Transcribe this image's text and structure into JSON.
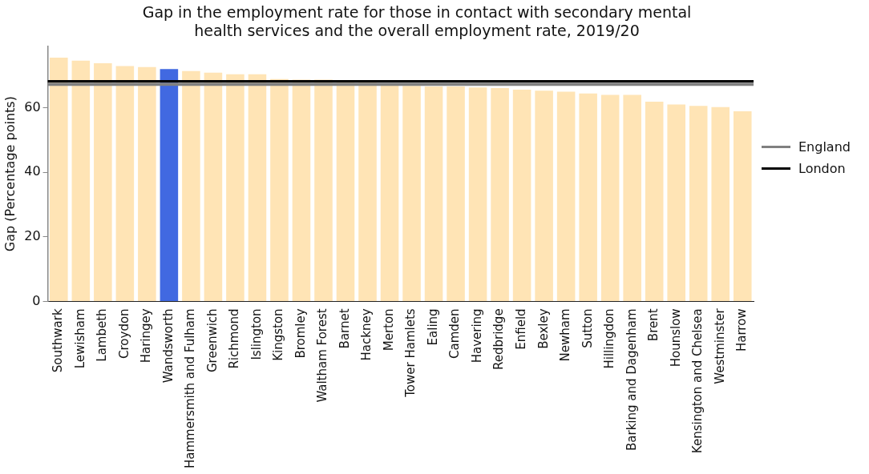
{
  "chart_data": {
    "type": "bar",
    "title": "Gap in the employment rate for those in contact with secondary mental health services and the overall employment rate, 2019/20",
    "ylabel": "Gap (Percentage points)",
    "categories": [
      "Southwark",
      "Lewisham",
      "Lambeth",
      "Croydon",
      "Haringey",
      "Wandsworth",
      "Hammersmith and Fulham",
      "Greenwich",
      "Richmond",
      "Islington",
      "Kingston",
      "Bromley",
      "Waltham Forest",
      "Barnet",
      "Hackney",
      "Merton",
      "Tower Hamlets",
      "Ealing",
      "Camden",
      "Havering",
      "Redbridge",
      "Enfield",
      "Bexley",
      "Newham",
      "Sutton",
      "Hillingdon",
      "Barking and Dagenham",
      "Brent",
      "Hounslow",
      "Kensington and Chelsea",
      "Westminster",
      "Harrow"
    ],
    "values": [
      75.5,
      74.6,
      73.8,
      72.9,
      72.6,
      72.0,
      71.4,
      70.9,
      70.4,
      70.4,
      68.9,
      68.7,
      68.7,
      68.4,
      68.0,
      67.2,
      66.8,
      66.6,
      66.6,
      66.3,
      66.1,
      65.6,
      65.3,
      65.0,
      64.4,
      64.0,
      64.0,
      61.9,
      61.0,
      60.6,
      60.2,
      58.9
    ],
    "colors": [
      "#ffe4b5",
      "#ffe4b5",
      "#ffe4b5",
      "#ffe4b5",
      "#ffe4b5",
      "#4169e1",
      "#ffe4b5",
      "#ffe4b5",
      "#ffe4b5",
      "#ffe4b5",
      "#ffe4b5",
      "#ffe4b5",
      "#ffe4b5",
      "#ffe4b5",
      "#ffe4b5",
      "#ffe4b5",
      "#ffe4b5",
      "#ffe4b5",
      "#ffe4b5",
      "#ffe4b5",
      "#ffe4b5",
      "#ffe4b5",
      "#ffe4b5",
      "#ffe4b5",
      "#ffe4b5",
      "#ffe4b5",
      "#ffe4b5",
      "#ffe4b5",
      "#ffe4b5",
      "#ffe4b5",
      "#ffe4b5",
      "#ffe4b5"
    ],
    "ylim": [
      0,
      79
    ],
    "yticks": [
      0,
      20,
      40,
      60
    ],
    "grid": false,
    "legend": "right",
    "ref_lines": [
      {
        "axis": "y",
        "value": 67.3,
        "label": "England",
        "color": "#808080"
      },
      {
        "axis": "y",
        "value": 68.2,
        "label": "London",
        "color": "#000000"
      }
    ]
  }
}
